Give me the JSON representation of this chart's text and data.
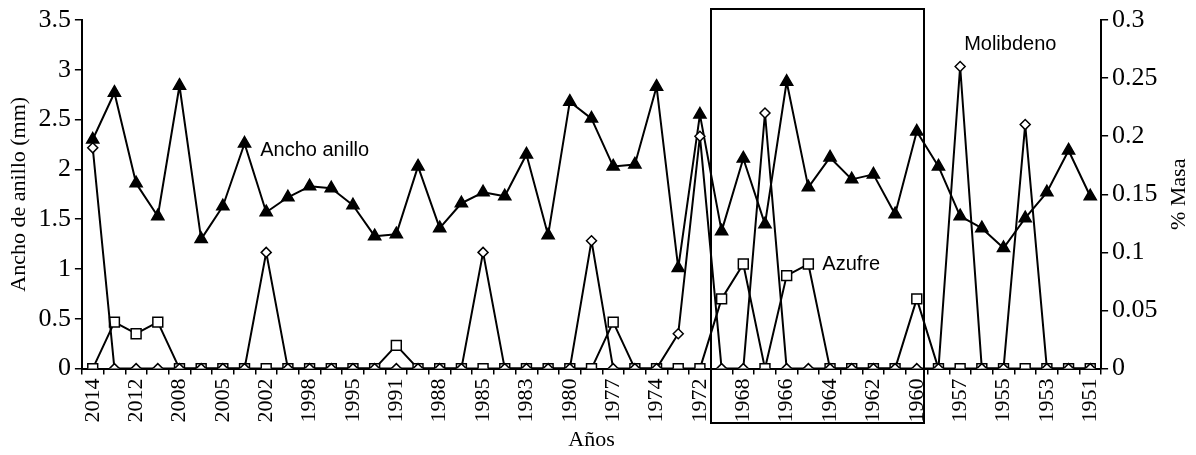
{
  "chart_data": {
    "type": "line",
    "xlabel": "Años",
    "ylabel": "Ancho de anillo (mm)",
    "y2label": "% Masa",
    "categories": [
      "2014",
      null,
      "2012",
      null,
      "2008",
      null,
      "2005",
      null,
      "2002",
      null,
      "1998",
      null,
      "1995",
      null,
      "1991",
      null,
      "1988",
      null,
      "1985",
      null,
      "1983",
      null,
      "1980",
      null,
      "1977",
      null,
      "1974",
      null,
      "1972",
      null,
      "1968",
      null,
      "1966",
      null,
      "1964",
      null,
      "1962",
      null,
      "1960",
      null,
      "1957",
      null,
      "1955",
      null,
      "1953",
      null,
      "1951"
    ],
    "ylim": [
      0,
      3.5
    ],
    "yticks": [
      0,
      0.5,
      1,
      1.5,
      2,
      2.5,
      3,
      3.5
    ],
    "y2lim": [
      0,
      0.3
    ],
    "y2ticks": [
      0,
      0.05,
      0.1,
      0.15,
      0.2,
      0.25,
      0.3
    ],
    "grid": false,
    "legend": false,
    "line_style": "solid",
    "series": [
      {
        "name": "Ancho anillo",
        "color": "#000000",
        "marker": "triangle",
        "values": [
          2.3,
          2.77,
          1.86,
          1.53,
          2.84,
          1.3,
          1.63,
          2.26,
          1.57,
          1.72,
          1.83,
          1.81,
          1.64,
          1.33,
          1.35,
          2.03,
          1.41,
          1.66,
          1.77,
          1.73,
          2.15,
          1.34,
          2.68,
          2.51,
          2.03,
          2.05,
          2.83,
          1.01,
          2.55,
          1.38,
          2.11,
          1.45,
          2.88,
          1.82,
          2.12,
          1.9,
          1.95,
          1.55,
          2.38,
          2.03,
          1.53,
          1.41,
          1.21,
          1.51,
          1.77,
          2.19,
          1.73
        ]
      },
      {
        "name": "Azufre",
        "color": "#000000",
        "marker": "square",
        "axis": "y2",
        "values": [
          0,
          0.04,
          0.03,
          0.04,
          0,
          0,
          0,
          0,
          0,
          0,
          0,
          0,
          0,
          0,
          0.02,
          0,
          0,
          0,
          0,
          0,
          0,
          0,
          0,
          0,
          0.04,
          0,
          0,
          0,
          0,
          0.06,
          0.09,
          0,
          0.08,
          0.09,
          0,
          0,
          0,
          0,
          0.06,
          0,
          0,
          0,
          0,
          0,
          0,
          0,
          0
        ]
      },
      {
        "name": "Molibdeno",
        "color": "#000000",
        "marker": "diamond",
        "axis": "y2",
        "values": [
          0.19,
          0,
          0,
          0,
          0,
          0,
          0,
          0,
          0.1,
          0,
          0,
          0,
          0,
          0,
          0,
          0,
          0,
          0,
          0.1,
          0,
          0,
          0,
          0,
          0.11,
          0,
          0,
          0,
          0.03,
          0.2,
          0,
          0,
          0.22,
          0,
          0,
          0,
          0,
          0,
          0,
          0,
          0,
          0.26,
          0,
          0,
          0.21,
          0,
          0,
          0
        ]
      }
    ]
  }
}
